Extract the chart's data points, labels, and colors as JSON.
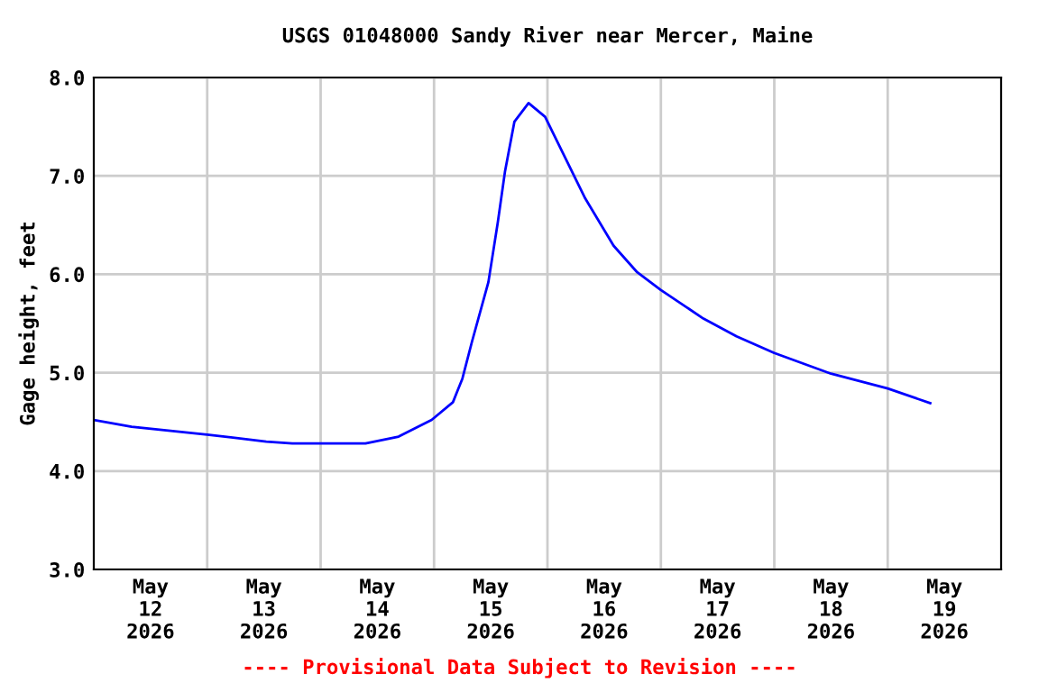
{
  "chart_data": {
    "type": "line",
    "title": "USGS 01048000 Sandy River near Mercer, Maine",
    "ylabel": "Gage height, feet",
    "annotations": [
      "---- Provisional Data Subject to Revision ----"
    ],
    "x": [
      "2026-05-12T00:00",
      "2026-05-12T08:00",
      "2026-05-13T00:00",
      "2026-05-13T12:30",
      "2026-05-13T18:00",
      "2026-05-14T09:30",
      "2026-05-14T16:30",
      "2026-05-14T23:30",
      "2026-05-15T04:00",
      "2026-05-15T06:00",
      "2026-05-15T08:00",
      "2026-05-15T11:30",
      "2026-05-15T13:30",
      "2026-05-15T15:00",
      "2026-05-15T17:00",
      "2026-05-15T20:00",
      "2026-05-15T23:30",
      "2026-05-16T03:30",
      "2026-05-16T08:00",
      "2026-05-16T14:00",
      "2026-05-16T19:00",
      "2026-05-17T00:00",
      "2026-05-17T09:00",
      "2026-05-17T16:00",
      "2026-05-18T00:00",
      "2026-05-18T12:00",
      "2026-05-19T00:00",
      "2026-05-19T09:00"
    ],
    "series": [
      {
        "color": "#0000ff",
        "values": [
          4.52,
          4.45,
          4.37,
          4.3,
          4.28,
          4.28,
          4.35,
          4.52,
          4.7,
          4.94,
          5.31,
          5.92,
          6.53,
          7.04,
          7.55,
          7.74,
          7.6,
          7.21,
          6.77,
          6.29,
          6.02,
          5.84,
          5.55,
          5.37,
          5.2,
          4.99,
          4.84,
          4.69
        ]
      }
    ],
    "xlim": [
      "2026-05-12T00:00",
      "2026-05-20T00:00"
    ],
    "xticks": [
      {
        "value": "2026-05-12T12:00",
        "label": "May\n12\n2026"
      },
      {
        "value": "2026-05-13T12:00",
        "label": "May\n13\n2026"
      },
      {
        "value": "2026-05-14T12:00",
        "label": "May\n14\n2026"
      },
      {
        "value": "2026-05-15T12:00",
        "label": "May\n15\n2026"
      },
      {
        "value": "2026-05-16T12:00",
        "label": "May\n16\n2026"
      },
      {
        "value": "2026-05-17T12:00",
        "label": "May\n17\n2026"
      },
      {
        "value": "2026-05-18T12:00",
        "label": "May\n18\n2026"
      },
      {
        "value": "2026-05-19T12:00",
        "label": "May\n19\n2026"
      },
      {
        "value": "2026-05-13T00:00",
        "label": null
      },
      {
        "value": "2026-05-14T00:00",
        "label": null
      },
      {
        "value": "2026-05-15T00:00",
        "label": null
      },
      {
        "value": "2026-05-16T00:00",
        "label": null
      },
      {
        "value": "2026-05-17T00:00",
        "label": null
      },
      {
        "value": "2026-05-18T00:00",
        "label": null
      },
      {
        "value": "2026-05-19T00:00",
        "label": null
      }
    ],
    "ylim": [
      3,
      8
    ],
    "yticks": [
      {
        "value": 3,
        "label": "3.0"
      },
      {
        "value": 4,
        "label": "4.0"
      },
      {
        "value": 5,
        "label": "5.0"
      },
      {
        "value": 6,
        "label": "6.0"
      },
      {
        "value": 7,
        "label": "7.0"
      },
      {
        "value": 8,
        "label": "8.0"
      }
    ],
    "grid": true,
    "legend": false,
    "marker": "none",
    "line_style": "solid"
  }
}
